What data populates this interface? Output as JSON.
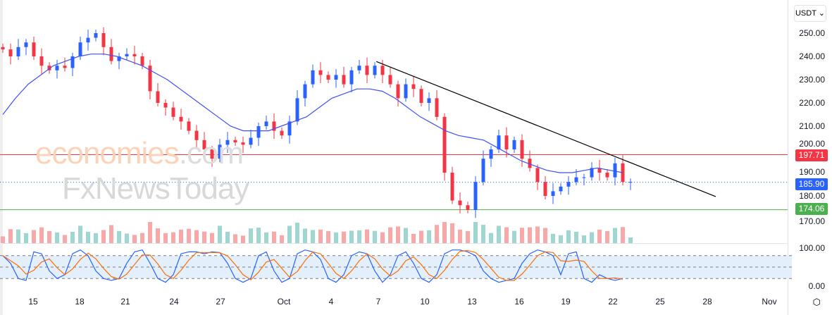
{
  "currency_selector": {
    "label": "USDT ⌄"
  },
  "price_axis": [
    "250.00",
    "240.00",
    "230.00",
    "220.00",
    "210.00",
    "200.00",
    "190.00",
    "180.00",
    "170.00"
  ],
  "osc_axis": [
    "100.00",
    "0.00"
  ],
  "tags": {
    "resistance": "197.71",
    "last": "185.90",
    "support": "174.06"
  },
  "x_axis": [
    "15",
    "18",
    "21",
    "24",
    "27",
    "Oct",
    "4",
    "7",
    "10",
    "13",
    "16",
    "19",
    "22",
    "25",
    "28",
    "Nov"
  ],
  "watermark": {
    "line1": "economies",
    "line1b": ".com",
    "line2": "FxNewsToday"
  },
  "colors": {
    "up": "#2962ff",
    "down": "#f23645",
    "ma": "#3f51f5",
    "support": "#4caf50",
    "resistance": "#f23645"
  },
  "chart_data": {
    "type": "candlestick",
    "ylim": [
      165,
      256
    ],
    "closes": [
      243,
      240,
      244,
      246,
      240,
      236,
      234,
      236,
      235,
      240,
      246,
      248,
      250,
      244,
      238,
      240,
      241,
      240,
      236,
      225,
      220,
      218,
      214,
      212,
      208,
      204,
      200,
      196,
      202,
      204,
      203,
      202,
      205,
      210,
      212,
      208,
      206,
      212,
      222,
      228,
      234,
      232,
      230,
      232,
      228,
      234,
      236,
      232,
      236,
      232,
      228,
      222,
      228,
      226,
      220,
      222,
      214,
      190,
      178,
      176,
      174,
      186,
      196,
      200,
      206,
      200,
      204,
      196,
      192,
      186,
      180,
      182,
      184,
      186,
      188,
      188,
      192,
      190,
      188,
      194,
      186,
      186
    ],
    "moving_average": [
      215,
      222,
      228,
      232,
      236,
      238,
      240,
      241,
      241,
      240,
      238,
      236,
      233,
      230,
      226,
      222,
      218,
      214,
      210,
      208,
      208,
      208,
      210,
      212,
      214,
      218,
      222,
      224,
      226,
      226,
      225,
      222,
      218,
      214,
      211,
      208,
      206,
      205,
      204,
      201,
      198,
      195,
      193,
      191,
      190,
      190,
      191,
      192,
      191,
      190
    ],
    "trendline": {
      "from": [
        48.2,
        237.8
      ],
      "to": [
        92,
        179.7
      ]
    },
    "levels": {
      "resistance": 197.71,
      "last": 185.9,
      "support": 174.06
    },
    "stochastic_k": [
      80,
      60,
      20,
      15,
      90,
      85,
      40,
      20,
      30,
      85,
      95,
      80,
      40,
      20,
      15,
      20,
      60,
      90,
      95,
      60,
      20,
      10,
      30,
      85,
      90,
      90,
      85,
      90,
      88,
      60,
      20,
      10,
      20,
      80,
      90,
      40,
      10,
      20,
      85,
      95,
      90,
      70,
      20,
      10,
      30,
      80,
      90,
      85,
      40,
      10,
      30,
      80,
      90,
      60,
      20,
      10,
      30,
      85,
      95,
      95,
      90,
      80,
      40,
      20,
      10,
      15,
      20,
      60,
      85,
      95,
      90,
      80,
      30,
      85,
      90,
      20,
      10,
      30,
      20,
      15,
      20
    ],
    "oscillator_ylim": [
      0,
      100
    ]
  }
}
